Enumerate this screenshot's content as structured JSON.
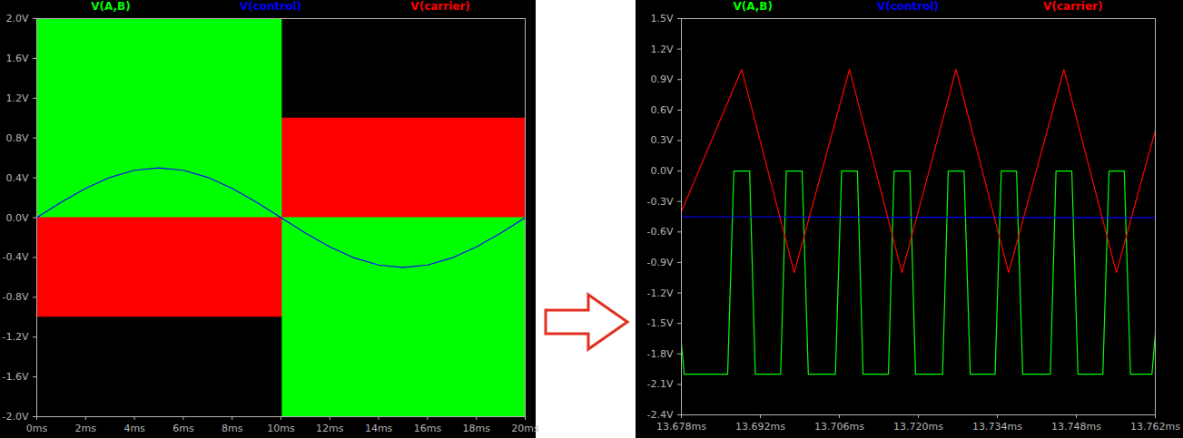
{
  "chart_data": [
    {
      "type": "area",
      "xlim": [
        0,
        20
      ],
      "xticks": [
        {
          "value": 0,
          "label": "0ms"
        },
        {
          "value": 2,
          "label": "2ms"
        },
        {
          "value": 4,
          "label": "4ms"
        },
        {
          "value": 6,
          "label": "6ms"
        },
        {
          "value": 8,
          "label": "8ms"
        },
        {
          "value": 10,
          "label": "10ms"
        },
        {
          "value": 12,
          "label": "12ms"
        },
        {
          "value": 14,
          "label": "14ms"
        },
        {
          "value": 16,
          "label": "16ms"
        },
        {
          "value": 18,
          "label": "18ms"
        },
        {
          "value": 20,
          "label": "20ms"
        }
      ],
      "ylim": [
        -2,
        2
      ],
      "yticks": [
        {
          "value": 2,
          "label": "2.0V"
        },
        {
          "value": 1.6,
          "label": "1.6V"
        },
        {
          "value": 1.2,
          "label": "1.2V"
        },
        {
          "value": 0.8,
          "label": "0.8V"
        },
        {
          "value": 0.4,
          "label": "0.4V"
        },
        {
          "value": 0,
          "label": "0.0V"
        },
        {
          "value": -0.4,
          "label": "-0.4V"
        },
        {
          "value": -0.8,
          "label": "-0.8V"
        },
        {
          "value": -1.2,
          "label": "-1.2V"
        },
        {
          "value": -1.6,
          "label": "-1.6V"
        },
        {
          "value": -2,
          "label": "-2.0V"
        }
      ],
      "grid": false,
      "series": [
        {
          "name": "V(A,B)",
          "color": "#00ff00",
          "type": "band",
          "x": [
            0,
            10.05,
            20
          ],
          "lo": [
            0,
            -2,
            -2
          ],
          "hi": [
            2,
            0,
            0
          ]
        },
        {
          "name": "V(control)",
          "color": "#0000ff",
          "type": "line",
          "x": [
            0,
            1,
            2,
            3,
            4,
            5,
            6,
            7,
            8,
            9,
            10,
            11,
            12,
            13,
            14,
            15,
            16,
            17,
            18,
            19,
            20
          ],
          "values": [
            0,
            0.155,
            0.294,
            0.405,
            0.476,
            0.5,
            0.476,
            0.405,
            0.294,
            0.155,
            0,
            -0.155,
            -0.294,
            -0.405,
            -0.476,
            -0.5,
            -0.476,
            -0.405,
            -0.294,
            -0.155,
            0
          ]
        },
        {
          "name": "V(carrier)",
          "color": "#ff0000",
          "type": "band",
          "x": [
            0,
            20
          ],
          "lo": [
            -1,
            -1
          ],
          "hi": [
            1,
            1
          ]
        }
      ]
    },
    {
      "type": "line",
      "xlim": [
        13.678,
        13.762
      ],
      "xticks": [
        {
          "value": 13.678,
          "label": "13.678ms"
        },
        {
          "value": 13.692,
          "label": "13.692ms"
        },
        {
          "value": 13.706,
          "label": "13.706ms"
        },
        {
          "value": 13.72,
          "label": "13.720ms"
        },
        {
          "value": 13.734,
          "label": "13.734ms"
        },
        {
          "value": 13.748,
          "label": "13.748ms"
        },
        {
          "value": 13.762,
          "label": "13.762ms"
        }
      ],
      "ylim": [
        -2.4,
        1.5
      ],
      "yticks": [
        {
          "value": 1.5,
          "label": "1.5V"
        },
        {
          "value": 1.2,
          "label": "1.2V"
        },
        {
          "value": 0.9,
          "label": "0.9V"
        },
        {
          "value": 0.6,
          "label": "0.6V"
        },
        {
          "value": 0.3,
          "label": "0.3V"
        },
        {
          "value": 0,
          "label": "0.0V"
        },
        {
          "value": -0.3,
          "label": "-0.3V"
        },
        {
          "value": -0.6,
          "label": "-0.6V"
        },
        {
          "value": -0.9,
          "label": "-0.9V"
        },
        {
          "value": -1.2,
          "label": "-1.2V"
        },
        {
          "value": -1.5,
          "label": "-1.5V"
        },
        {
          "value": -1.8,
          "label": "-1.8V"
        },
        {
          "value": -2.1,
          "label": "-2.1V"
        },
        {
          "value": -2.4,
          "label": "-2.4V"
        }
      ],
      "grid": false,
      "series": [
        {
          "name": "V(A,B)",
          "color": "#00ff00",
          "x": [
            13.678,
            13.6785,
            13.6862,
            13.6873,
            13.6901,
            13.6911,
            13.6956,
            13.6966,
            13.6994,
            13.7005,
            13.7053,
            13.7064,
            13.7092,
            13.7102,
            13.7147,
            13.7157,
            13.7185,
            13.7195,
            13.7243,
            13.7253,
            13.7281,
            13.7292,
            13.7336,
            13.7347,
            13.7374,
            13.7385,
            13.7434,
            13.7444,
            13.7472,
            13.7483,
            13.7527,
            13.7538,
            13.7565,
            13.7576,
            13.7614,
            13.762
          ],
          "values": [
            -1.7,
            -2,
            -2,
            0,
            0,
            -2,
            -2,
            0,
            0,
            -2,
            -2,
            0,
            0,
            -2,
            -2,
            0,
            0,
            -2,
            -2,
            0,
            0,
            -2,
            -2,
            0,
            0,
            -2,
            -2,
            0,
            0,
            -2,
            -2,
            0,
            0,
            -2,
            -2,
            -1.6
          ]
        },
        {
          "name": "V(control)",
          "color": "#0000ff",
          "x": [
            13.678,
            13.762
          ],
          "values": [
            -0.45,
            -0.46
          ]
        },
        {
          "name": "V(carrier)",
          "color": "#ff0000",
          "x": [
            13.678,
            13.6887,
            13.698,
            13.7078,
            13.7171,
            13.7267,
            13.736,
            13.7458,
            13.7551,
            13.762
          ],
          "values": [
            -0.4,
            1,
            -1,
            1,
            -1,
            1,
            -1,
            1,
            -1,
            0.4
          ]
        }
      ]
    }
  ]
}
